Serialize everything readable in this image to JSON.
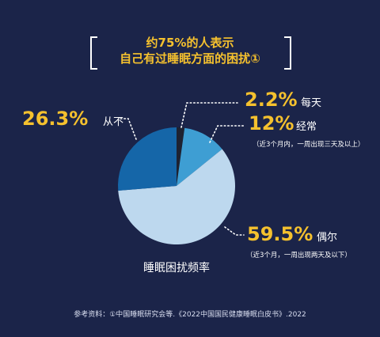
{
  "title": {
    "line1": "约75%的人表示",
    "line2": "自己有过睡眠方面的困扰①"
  },
  "footnote": "参考资料：①中国睡眠研究会等.《2022中国国民健康睡眠白皮书》.2022",
  "colors": {
    "background": "#1b2449",
    "accent": "#f5c12e",
    "text": "#ffffff"
  },
  "chart_data": {
    "type": "pie",
    "title": "睡眠困扰频率",
    "start_angle_deg": 0,
    "direction": "clockwise",
    "slices": [
      {
        "label": "每天",
        "value": 2.2,
        "value_text": "2.2%",
        "note": "",
        "color": "#1e2231"
      },
      {
        "label": "经常",
        "value": 12,
        "value_text": "12%",
        "note": "（近3个月内，一周出现三天及以上）",
        "color": "#3e9ed3"
      },
      {
        "label": "偶尔",
        "value": 59.5,
        "value_text": "59.5%",
        "note": "（近3个月，一周出现两天及以下）",
        "color": "#bdd8ee"
      },
      {
        "label": "从不",
        "value": 26.3,
        "value_text": "26.3%",
        "note": "",
        "color": "#1566a8"
      }
    ]
  }
}
